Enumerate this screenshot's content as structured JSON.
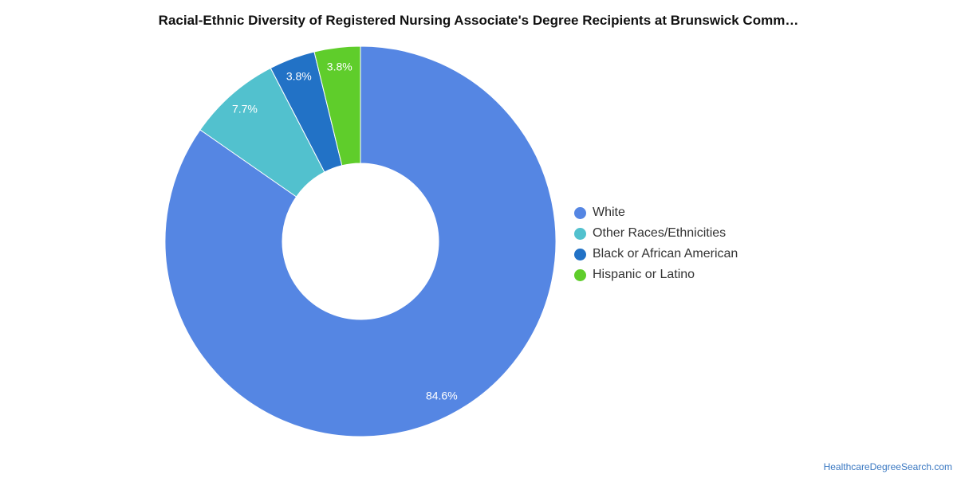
{
  "chart_data": {
    "type": "pie",
    "title": "Racial-Ethnic Diversity of Registered Nursing Associate's Degree Recipients at Brunswick Comm…",
    "donut": true,
    "categories": [
      "White",
      "Other Races/Ethnicities",
      "Black or African American",
      "Hispanic or Latino"
    ],
    "values": [
      84.6,
      7.7,
      3.8,
      3.8
    ],
    "labels": [
      "84.6%",
      "7.7%",
      "3.8%",
      "3.8%"
    ],
    "colors": [
      "#5586e3",
      "#52c1ce",
      "#2272c6",
      "#5fcd2b"
    ],
    "legend_position": "right"
  },
  "legend": {
    "items": [
      {
        "label": "White",
        "color": "#5586e3"
      },
      {
        "label": "Other Races/Ethnicities",
        "color": "#52c1ce"
      },
      {
        "label": "Black or African American",
        "color": "#2272c6"
      },
      {
        "label": "Hispanic or Latino",
        "color": "#5fcd2b"
      }
    ]
  },
  "footer": {
    "source": "HealthcareDegreeSearch.com"
  }
}
